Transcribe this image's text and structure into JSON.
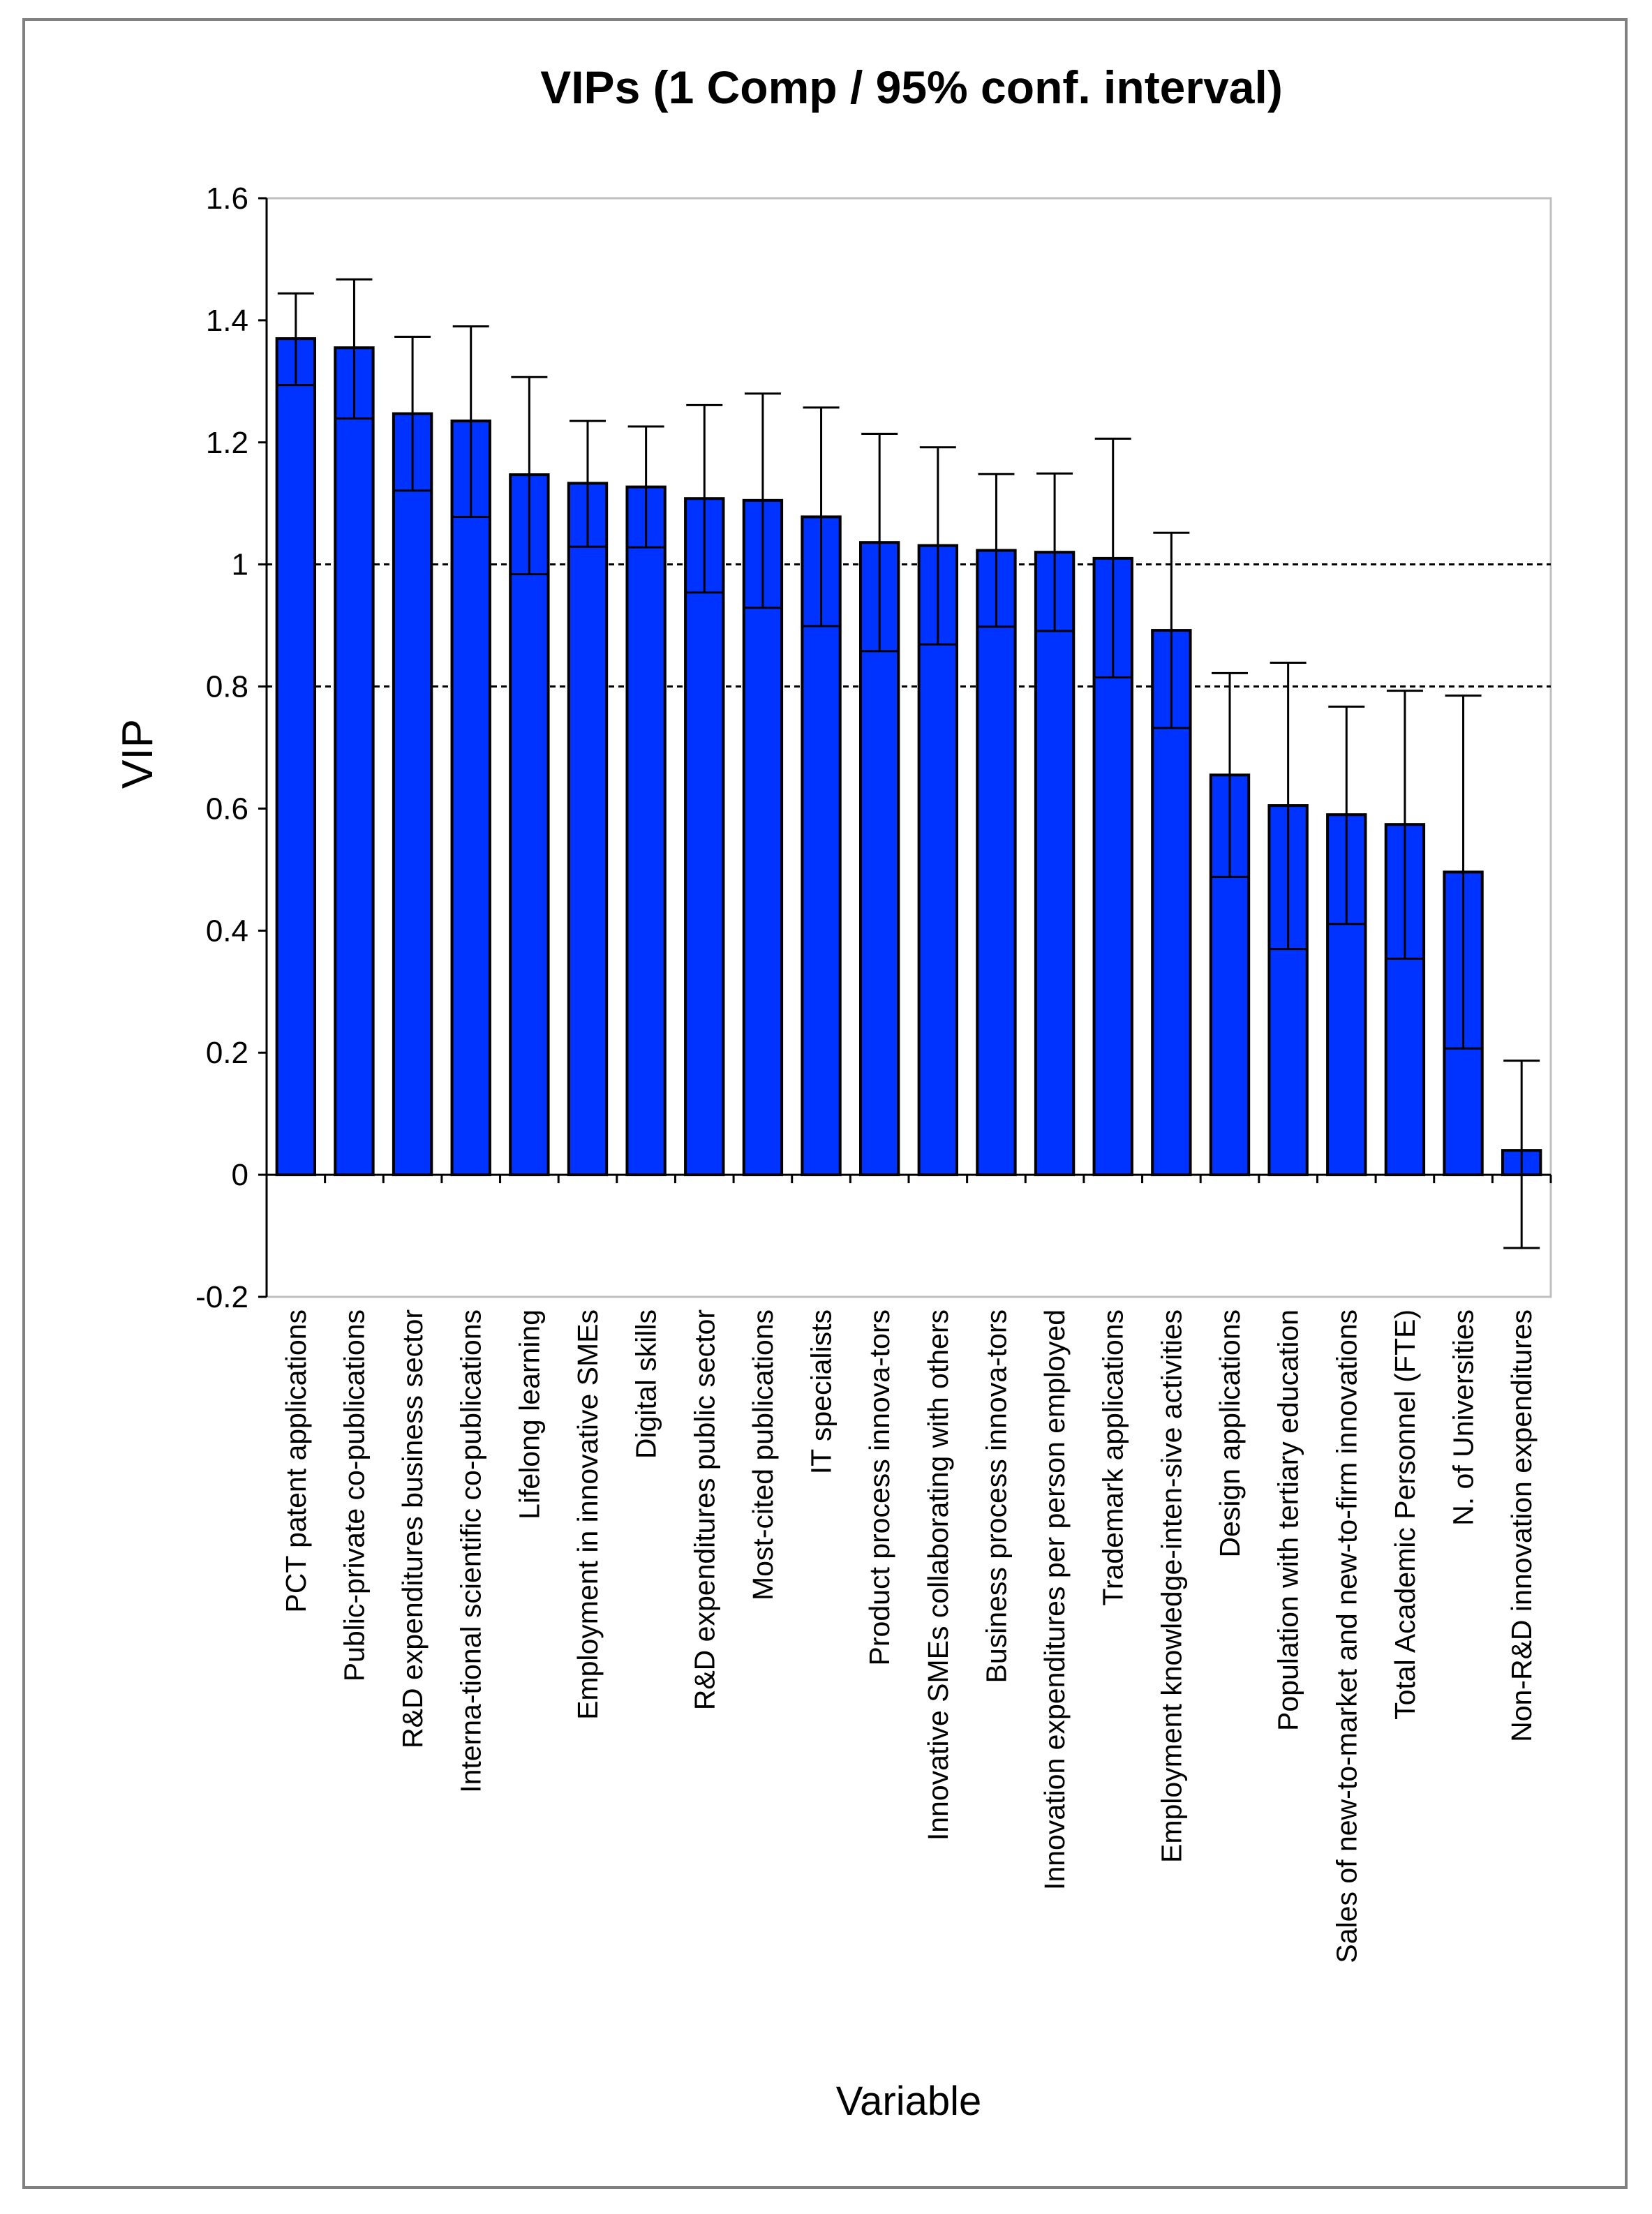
{
  "chart_data": {
    "type": "bar",
    "title": "VIPs (1 Comp / 95% conf. interval)",
    "xlabel": "Variable",
    "ylabel": "VIP",
    "ylim": [
      -0.2,
      1.6
    ],
    "yticks": [
      -0.2,
      0,
      0.2,
      0.4,
      0.6,
      0.8,
      1,
      1.2,
      1.4,
      1.6
    ],
    "ytick_labels": [
      "-0.2",
      "0",
      "0.2",
      "0.4",
      "0.6",
      "0.8",
      "1",
      "1.2",
      "1.4",
      "1.6"
    ],
    "reference_lines": [
      1,
      0.8
    ],
    "grid": false,
    "bar_color": "#0033ff",
    "bar_edge_color": "#000000",
    "categories": [
      "PCT patent applications",
      "Public-private co-publications",
      "R&D expenditures business sector",
      "Interna-tional scientific co-publications",
      "Lifelong learning",
      "Employment in innovative SMEs",
      "Digital skills",
      "R&D expenditures public sector",
      "Most-cited publications",
      "IT specialists",
      "Product process innova-tors",
      "Innovative SMEs collaborating with others",
      "Business process innova-tors",
      "Innovation expenditures per person employed",
      "Trademark applications",
      "Employment knowledge-inten-sive activities",
      "Design applications",
      "Population with tertiary education",
      "Sales of new-to-market and new-to-firm innovations",
      "Total Academic Personnel (FTE)",
      "N. of Universities",
      "Non-R&D innovation expenditures"
    ],
    "values": [
      1.37,
      1.355,
      1.247,
      1.235,
      1.147,
      1.133,
      1.127,
      1.108,
      1.105,
      1.078,
      1.036,
      1.031,
      1.023,
      1.02,
      1.01,
      0.892,
      0.655,
      0.605,
      0.59,
      0.574,
      0.496,
      0.04
    ],
    "ci_lower": [
      1.294,
      1.239,
      1.121,
      1.078,
      0.984,
      1.029,
      1.028,
      0.954,
      0.929,
      0.899,
      0.858,
      0.869,
      0.898,
      0.891,
      0.815,
      0.732,
      0.488,
      0.37,
      0.411,
      0.354,
      0.207,
      -0.12
    ],
    "ci_upper": [
      1.444,
      1.467,
      1.373,
      1.39,
      1.307,
      1.235,
      1.226,
      1.261,
      1.28,
      1.257,
      1.214,
      1.192,
      1.148,
      1.149,
      1.206,
      1.052,
      0.822,
      0.839,
      0.767,
      0.793,
      0.785,
      0.187
    ]
  }
}
